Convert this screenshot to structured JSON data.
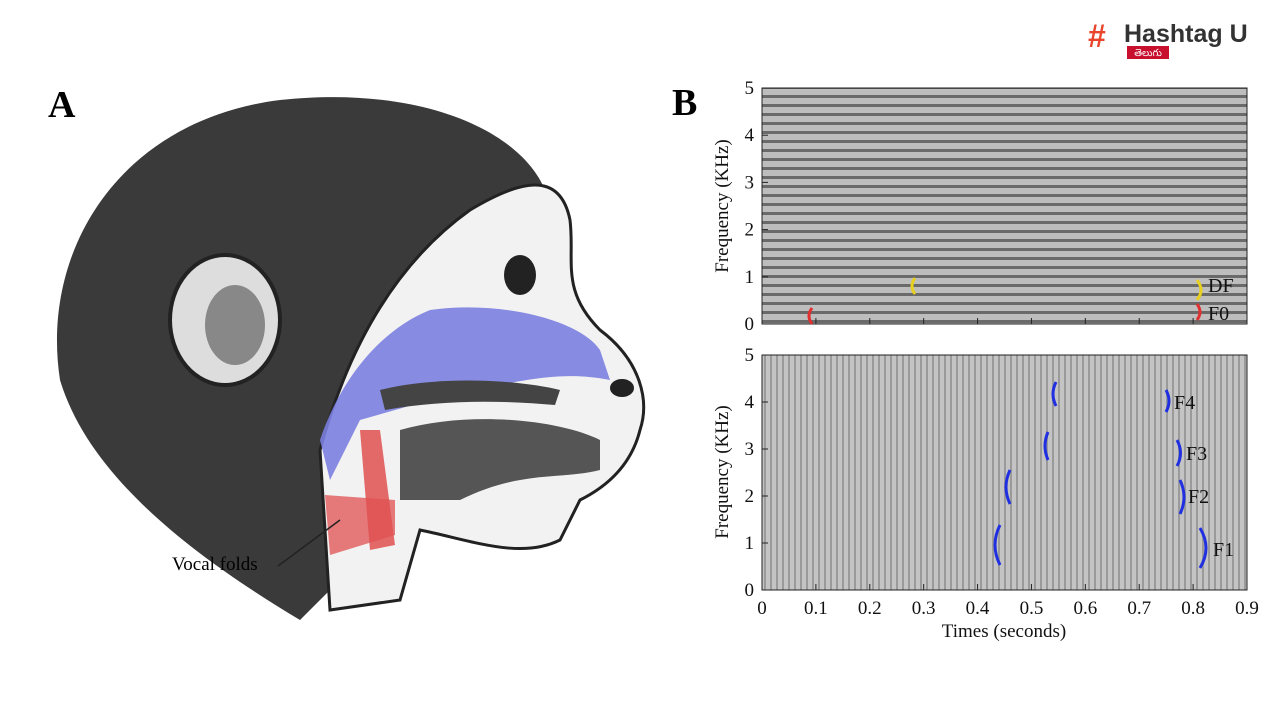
{
  "logo": {
    "name": "Hashtag U",
    "sub": "తెలుగు"
  },
  "panel_a": {
    "letter": "A",
    "label": "Vocal folds"
  },
  "panel_b": {
    "letter": "B",
    "top": {
      "ylabel": "Frequency (KHz)",
      "ylim": [
        0,
        5
      ],
      "yticks": [
        0,
        1,
        2,
        3,
        4,
        5
      ],
      "labels": [
        "DF",
        "F0"
      ]
    },
    "bottom": {
      "ylabel": "Frequency (KHz)",
      "ylim": [
        0,
        5
      ],
      "yticks": [
        0,
        1,
        2,
        3,
        4,
        5
      ],
      "labels": [
        "F4",
        "F3",
        "F2",
        "F1"
      ]
    },
    "xlabel": "Times (seconds)",
    "xlim": [
      0,
      0.9
    ],
    "xticks": [
      0,
      0.1,
      0.2,
      0.3,
      0.4,
      0.5,
      0.6,
      0.7,
      0.8,
      0.9
    ]
  }
}
